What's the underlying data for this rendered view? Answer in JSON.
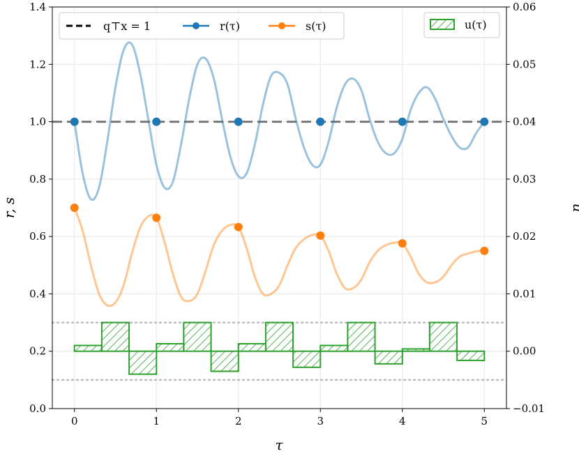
{
  "chart_data": {
    "type": "line",
    "xlabel": "τ",
    "ylabel": "r, s",
    "y2label": "u",
    "xlim": [
      -0.27,
      5.27
    ],
    "ylim": [
      0.0,
      1.4
    ],
    "y2lim": [
      -0.01,
      0.06
    ],
    "xticks": [
      "0",
      "1",
      "2",
      "3",
      "4",
      "5"
    ],
    "yticks": [
      "0.0",
      "0.2",
      "0.4",
      "0.6",
      "0.8",
      "1.0",
      "1.2",
      "1.4"
    ],
    "y2ticks": [
      "−0.01",
      "0.00",
      "0.01",
      "0.02",
      "0.03",
      "0.04",
      "0.05",
      "0.06"
    ],
    "grid": true,
    "reference_line": {
      "name": "q⊤x = 1",
      "y": 1.0,
      "color": "#000000",
      "style": "dashed"
    },
    "series": [
      {
        "name": "r(τ)",
        "color": "#1f77b4",
        "x": [
          0,
          0.1,
          0.2,
          0.3,
          0.4,
          0.5,
          0.6,
          0.7,
          0.8,
          0.9,
          1.0,
          1.1,
          1.2,
          1.3,
          1.4,
          1.5,
          1.6,
          1.7,
          1.8,
          1.9,
          2.0,
          2.1,
          2.2,
          2.3,
          2.4,
          2.5,
          2.6,
          2.7,
          2.8,
          2.9,
          3.0,
          3.1,
          3.2,
          3.3,
          3.4,
          3.5,
          3.6,
          3.7,
          3.8,
          3.9,
          4.0,
          4.1,
          4.2,
          4.3,
          4.4,
          4.5,
          4.6,
          4.7,
          4.8,
          4.9,
          5.0
        ],
        "y": [
          1.0,
          0.82,
          0.73,
          0.77,
          0.93,
          1.12,
          1.25,
          1.27,
          1.17,
          1.01,
          0.85,
          0.77,
          0.79,
          0.92,
          1.08,
          1.2,
          1.22,
          1.15,
          1.01,
          0.88,
          0.81,
          0.82,
          0.92,
          1.06,
          1.16,
          1.17,
          1.13,
          1.01,
          0.91,
          0.85,
          0.85,
          0.93,
          1.05,
          1.13,
          1.15,
          1.11,
          1.01,
          0.93,
          0.89,
          0.89,
          0.94,
          1.04,
          1.1,
          1.12,
          1.08,
          1.01,
          0.95,
          0.91,
          0.91,
          0.96,
          1.0
        ],
        "markers_x": [
          0,
          1,
          2,
          3,
          4,
          5
        ],
        "markers_y": [
          1.0,
          1.0,
          1.0,
          1.0,
          1.0,
          1.0
        ]
      },
      {
        "name": "s(τ)",
        "color": "#ff7f0e",
        "x": [
          0,
          0.1,
          0.2,
          0.3,
          0.4,
          0.5,
          0.6,
          0.7,
          0.8,
          0.9,
          1.0,
          1.1,
          1.2,
          1.3,
          1.4,
          1.5,
          1.6,
          1.7,
          1.8,
          1.9,
          2.0,
          2.1,
          2.2,
          2.3,
          2.4,
          2.5,
          2.6,
          2.7,
          2.8,
          2.9,
          3.0,
          3.1,
          3.2,
          3.3,
          3.4,
          3.5,
          3.6,
          3.7,
          3.8,
          3.9,
          4.0,
          4.1,
          4.2,
          4.3,
          4.4,
          4.5,
          4.6,
          4.7,
          4.8,
          4.9,
          5.0
        ],
        "y": [
          0.7,
          0.62,
          0.5,
          0.4,
          0.36,
          0.37,
          0.43,
          0.54,
          0.63,
          0.67,
          0.665,
          0.58,
          0.47,
          0.39,
          0.375,
          0.4,
          0.48,
          0.57,
          0.62,
          0.64,
          0.633,
          0.56,
          0.46,
          0.4,
          0.4,
          0.43,
          0.5,
          0.56,
          0.59,
          0.605,
          0.603,
          0.55,
          0.47,
          0.42,
          0.42,
          0.45,
          0.51,
          0.55,
          0.57,
          0.578,
          0.576,
          0.53,
          0.47,
          0.44,
          0.44,
          0.46,
          0.5,
          0.53,
          0.54,
          0.548,
          0.55
        ],
        "markers_x": [
          0,
          1,
          2,
          3,
          4,
          5
        ],
        "markers_y": [
          0.7,
          0.665,
          0.633,
          0.603,
          0.576,
          0.55
        ]
      }
    ],
    "bar_series": {
      "name": "u(τ)",
      "axis": "right",
      "color": "#2ca02c",
      "hatch": "///",
      "baseline": 0.0,
      "bin_width": 0.3333,
      "x_start": [
        0.0,
        0.333,
        0.667,
        1.0,
        1.333,
        1.667,
        2.0,
        2.333,
        2.667,
        3.0,
        3.333,
        3.667,
        4.0,
        4.333,
        4.667
      ],
      "values": [
        0.001,
        0.005,
        -0.004,
        0.0013,
        0.005,
        -0.0035,
        0.0013,
        0.005,
        -0.0028,
        0.001,
        0.005,
        -0.0022,
        0.0004,
        0.005,
        -0.0016
      ]
    },
    "bounds": {
      "upper": 0.005,
      "lower": -0.005,
      "axis": "right",
      "style": "dotted",
      "color": "#bbbbbb"
    },
    "legend_left": [
      "q⊤x = 1",
      "r(τ)",
      "s(τ)"
    ],
    "legend_right": [
      "u(τ)"
    ],
    "legend_placement": [
      "top-left",
      "top-right"
    ]
  }
}
